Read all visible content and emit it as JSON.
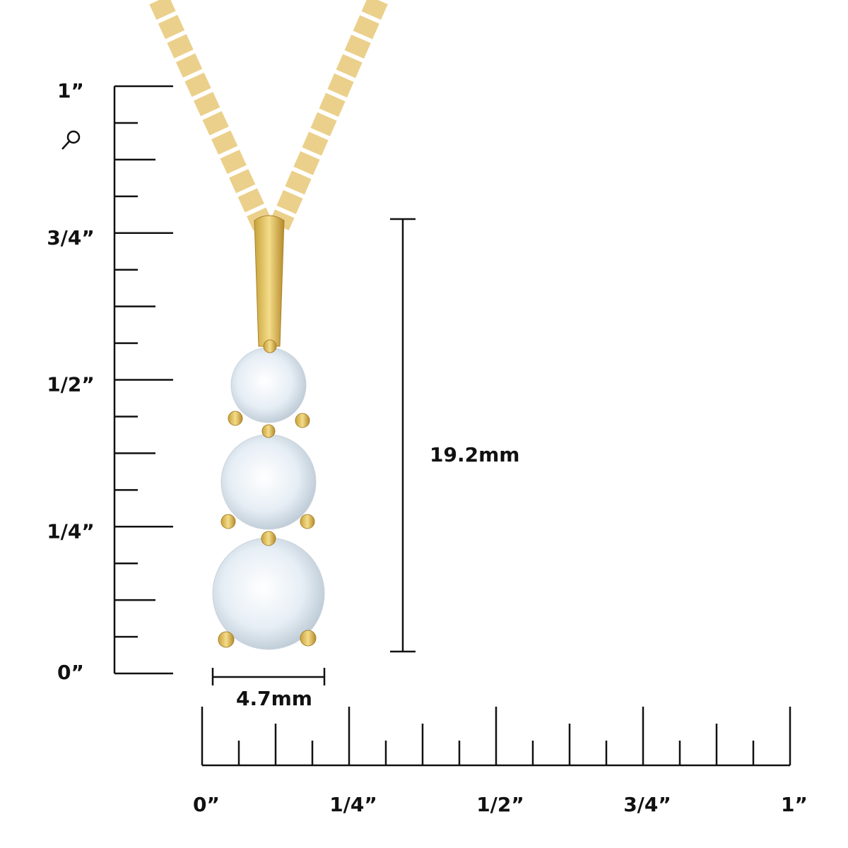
{
  "vertical_ruler": {
    "labels": [
      "1”",
      "3/4”",
      "1/2”",
      "1/4”",
      "0”"
    ]
  },
  "horizontal_ruler": {
    "labels": [
      "0”",
      "1/4”",
      "1/2”",
      "3/4”",
      "1”"
    ]
  },
  "dimensions": {
    "height": "19.2mm",
    "width": "4.7mm"
  }
}
